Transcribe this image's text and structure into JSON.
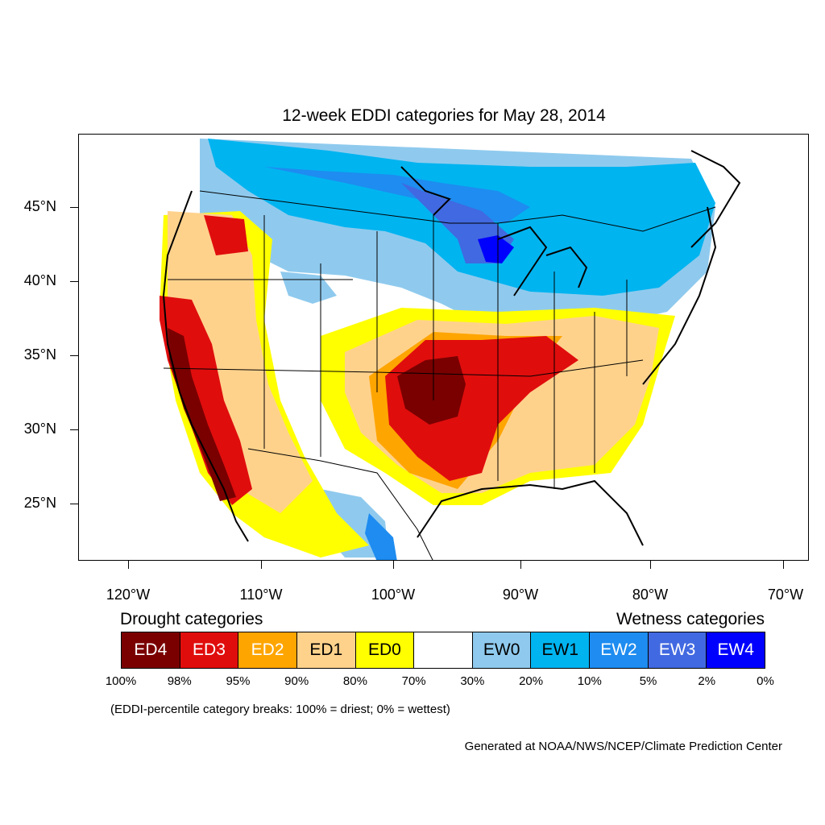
{
  "title": "12-week EDDI categories for May 28, 2014",
  "axes": {
    "lat_labels": [
      "45°N",
      "40°N",
      "35°N",
      "30°N",
      "25°N"
    ],
    "lon_labels": [
      "120°W",
      "110°W",
      "100°W",
      "90°W",
      "80°W",
      "70°W"
    ]
  },
  "legend": {
    "drought_title": "Drought categories",
    "wetness_title": "Wetness categories",
    "categories": [
      {
        "label": "ED4",
        "color": "#7a0000",
        "text_color": "#ffffff"
      },
      {
        "label": "ED3",
        "color": "#e00d0d",
        "text_color": "#ffffff"
      },
      {
        "label": "ED2",
        "color": "#ffa500",
        "text_color": "#ffffff"
      },
      {
        "label": "ED1",
        "color": "#ffd28c",
        "text_color": "#000000"
      },
      {
        "label": "ED0",
        "color": "#ffff00",
        "text_color": "#000000"
      },
      {
        "label": "",
        "color": "#ffffff",
        "text_color": "#000000"
      },
      {
        "label": "EW0",
        "color": "#8fcaee",
        "text_color": "#000000"
      },
      {
        "label": "EW1",
        "color": "#00b4f0",
        "text_color": "#000000"
      },
      {
        "label": "EW2",
        "color": "#1e8cf0",
        "text_color": "#ffffff"
      },
      {
        "label": "EW3",
        "color": "#4169e1",
        "text_color": "#ffffff"
      },
      {
        "label": "EW4",
        "color": "#0000ff",
        "text_color": "#ffffff"
      }
    ],
    "breaks": [
      "100%",
      "98%",
      "95%",
      "90%",
      "80%",
      "70%",
      "30%",
      "20%",
      "10%",
      "5%",
      "2%",
      "0%"
    ]
  },
  "break_note": "(EDDI-percentile category breaks: 100% = driest; 0% = wettest)",
  "credit": "Generated at NOAA/NWS/NCEP/Climate Prediction Center"
}
